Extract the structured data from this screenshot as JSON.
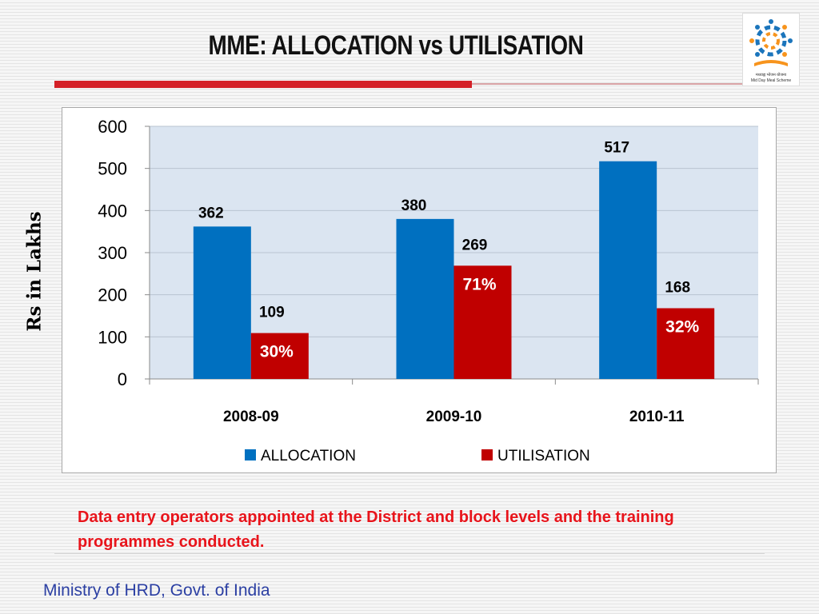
{
  "page": {
    "title": "MME: ALLOCATION vs UTILISATION",
    "note": "Data entry operators appointed at the District and block levels and the training programmes conducted.",
    "footer": "Ministry of HRD, Govt. of India",
    "logo": {
      "icon": "mid-day-meal-logo",
      "text_hindi": "मध्याह्न भोजन योजना",
      "text_english": "Mid Day Meal Scheme"
    }
  },
  "colors": {
    "allocation": "#0070c0",
    "utilisation": "#c00000",
    "title_rule": "#d42027",
    "note": "#e8141b",
    "footer": "#2b3fa3",
    "plot_bg": "#dbe5f1"
  },
  "chart_data": {
    "type": "bar",
    "title": "",
    "xlabel": "",
    "ylabel": "Rs in Lakhs",
    "categories": [
      "2008-09",
      "2009-10",
      "2010-11"
    ],
    "series": [
      {
        "name": "ALLOCATION",
        "values": [
          362,
          380,
          517
        ]
      },
      {
        "name": "UTILISATION",
        "values": [
          109,
          269,
          168
        ]
      }
    ],
    "utilisation_percent_labels": [
      "30%",
      "71%",
      "32%"
    ],
    "ylim": [
      0,
      600
    ],
    "yticks": [
      0,
      100,
      200,
      300,
      400,
      500,
      600
    ],
    "grid": true,
    "legend": "bottom"
  }
}
